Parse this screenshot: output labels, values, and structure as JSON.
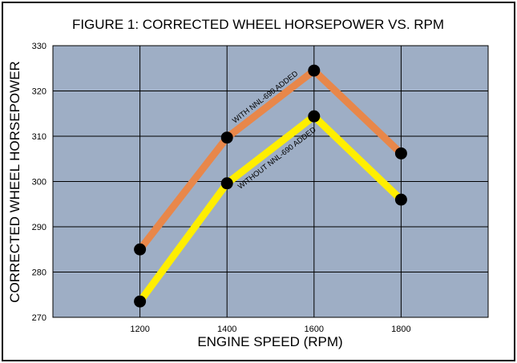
{
  "chart_data": {
    "type": "line",
    "title": "FIGURE 1:  CORRECTED WHEEL HORSEPOWER VS. RPM",
    "xlabel": "ENGINE SPEED (RPM)",
    "ylabel": "CORRECTED WHEEL HORSEPOWER",
    "x": [
      1200,
      1400,
      1600,
      1800
    ],
    "x_ticks": [
      1200,
      1400,
      1600,
      1800
    ],
    "xlim": [
      1000,
      2000
    ],
    "ylim": [
      270,
      330
    ],
    "y_ticks": [
      270,
      280,
      290,
      300,
      310,
      320,
      330
    ],
    "grid": true,
    "legend": "none",
    "plot_background": "#9eaec5",
    "series": [
      {
        "name": "WITH NNL-690 ADDED",
        "color": "#e8874a",
        "values": [
          285,
          309.7,
          324.5,
          306.2
        ]
      },
      {
        "name": "WITHOUT NNL-690 ADDED",
        "color": "#ffee00",
        "values": [
          273.5,
          299.6,
          314.4,
          296
        ]
      }
    ]
  }
}
